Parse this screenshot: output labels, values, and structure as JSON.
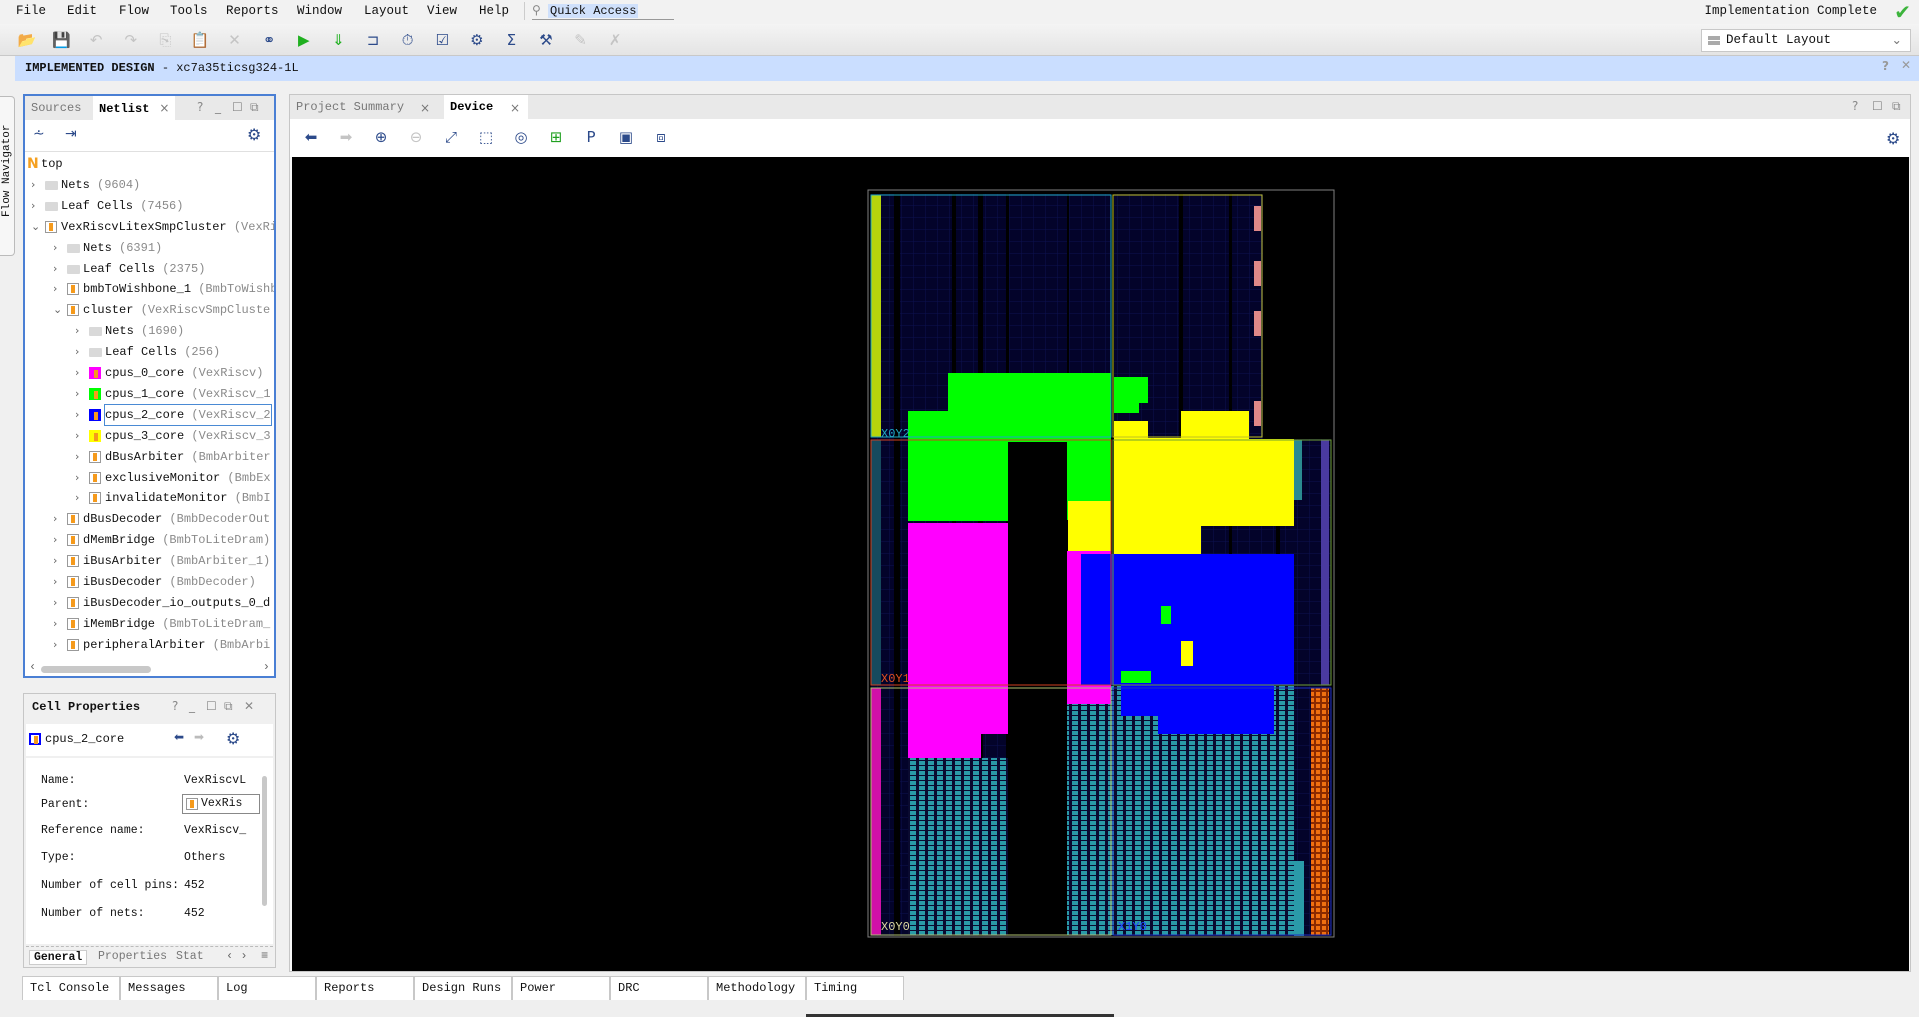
{
  "menu": [
    "File",
    "Edit",
    "Flow",
    "Tools",
    "Reports",
    "Window",
    "Layout",
    "View",
    "Help"
  ],
  "menu_mnemonic_index": [
    0,
    0,
    1,
    0,
    4,
    0,
    0,
    0,
    0
  ],
  "quick_access": "Quick Access",
  "toolbar_icons": [
    "open-project",
    "save",
    "undo",
    "redo",
    "copy",
    "paste",
    "delete",
    "find",
    "run",
    "program-bitstream",
    "report-timing",
    "timer",
    "checklist",
    "settings",
    "sum",
    "implement-settings",
    "edit-disabled",
    "cancel-disabled"
  ],
  "status": {
    "text": "Implementation Complete",
    "icon": "check-icon",
    "color": "#3cb43c"
  },
  "layout_select": {
    "value": "Default Layout"
  },
  "banner": {
    "title": "IMPLEMENTED DESIGN",
    "device": "- xc7a35ticsg324-1L"
  },
  "flow_navigator": "Flow Navigator",
  "netlist_panel": {
    "tabs": [
      {
        "label": "Sources",
        "active": false
      },
      {
        "label": "Netlist",
        "active": true
      }
    ],
    "close": "×",
    "tree": [
      {
        "level": 0,
        "type": "root",
        "name": "top",
        "detail": ""
      },
      {
        "level": 1,
        "type": "folder",
        "name": "Nets",
        "detail": "(9604)",
        "expanded": false
      },
      {
        "level": 1,
        "type": "folder",
        "name": "Leaf Cells",
        "detail": "(7456)",
        "expanded": false
      },
      {
        "level": 1,
        "type": "cell",
        "name": "VexRiscvLitexSmpCluster",
        "detail": "(VexRi",
        "expanded": true
      },
      {
        "level": 2,
        "type": "folder",
        "name": "Nets",
        "detail": "(6391)",
        "expanded": false
      },
      {
        "level": 2,
        "type": "folder",
        "name": "Leaf Cells",
        "detail": "(2375)",
        "expanded": false
      },
      {
        "level": 2,
        "type": "cell",
        "name": "bmbToWishbone_1",
        "detail": "(BmbToWishb",
        "expanded": false
      },
      {
        "level": 2,
        "type": "cell",
        "name": "cluster",
        "detail": "(VexRiscvSmpCluste",
        "expanded": true
      },
      {
        "level": 3,
        "type": "folder",
        "name": "Nets",
        "detail": "(1690)",
        "expanded": false
      },
      {
        "level": 3,
        "type": "folder",
        "name": "Leaf Cells",
        "detail": "(256)",
        "expanded": false
      },
      {
        "level": 3,
        "type": "cell",
        "name": "cpus_0_core",
        "detail": "(VexRiscv)",
        "expanded": false,
        "color": "#ff00ff"
      },
      {
        "level": 3,
        "type": "cell",
        "name": "cpus_1_core",
        "detail": "(VexRiscv_1",
        "expanded": false,
        "color": "#00ff00"
      },
      {
        "level": 3,
        "type": "cell",
        "name": "cpus_2_core",
        "detail": "(VexRiscv_2",
        "expanded": false,
        "color": "#0000ff",
        "selected": true
      },
      {
        "level": 3,
        "type": "cell",
        "name": "cpus_3_core",
        "detail": "(VexRiscv_3",
        "expanded": false,
        "color": "#ffff00"
      },
      {
        "level": 3,
        "type": "cell",
        "name": "dBusArbiter",
        "detail": "(BmbArbiter",
        "expanded": false
      },
      {
        "level": 3,
        "type": "cell",
        "name": "exclusiveMonitor",
        "detail": "(BmbEx",
        "expanded": false
      },
      {
        "level": 3,
        "type": "cell",
        "name": "invalidateMonitor",
        "detail": "(BmbI",
        "expanded": false
      },
      {
        "level": 2,
        "type": "cell",
        "name": "dBusDecoder",
        "detail": "(BmbDecoderOut",
        "expanded": false
      },
      {
        "level": 2,
        "type": "cell",
        "name": "dMemBridge",
        "detail": "(BmbToLiteDram)",
        "expanded": false
      },
      {
        "level": 2,
        "type": "cell",
        "name": "iBusArbiter",
        "detail": "(BmbArbiter_1)",
        "expanded": false
      },
      {
        "level": 2,
        "type": "cell",
        "name": "iBusDecoder",
        "detail": "(BmbDecoder)",
        "expanded": false
      },
      {
        "level": 2,
        "type": "cell",
        "name": "iBusDecoder_io_outputs_0_d",
        "detail": "",
        "expanded": false
      },
      {
        "level": 2,
        "type": "cell",
        "name": "iMemBridge",
        "detail": "(BmbToLiteDram_",
        "expanded": false
      },
      {
        "level": 2,
        "type": "cell",
        "name": "peripheralArbiter",
        "detail": "(BmbArbi",
        "expanded": false
      }
    ]
  },
  "cell_properties": {
    "title": "Cell Properties",
    "cell": "cpus_2_core",
    "rows": [
      {
        "label": "Name:",
        "value": "VexRiscvL"
      },
      {
        "label": "Parent:",
        "value": "VexRis"
      },
      {
        "label": "Reference name:",
        "value": "VexRiscv_"
      },
      {
        "label": "Type:",
        "value": "Others"
      },
      {
        "label": "Number of cell pins:",
        "value": "452"
      },
      {
        "label": "Number of nets:",
        "value": "452"
      }
    ],
    "tabs": [
      "General",
      "Properties",
      "Stat"
    ]
  },
  "device_panel": {
    "tabs": [
      {
        "label": "Project Summary",
        "active": false
      },
      {
        "label": "Device",
        "active": true
      }
    ],
    "toolbar_icons": [
      "back",
      "forward",
      "zoom-in",
      "zoom-out",
      "fit",
      "zoom-selection",
      "auto-fit",
      "route",
      "add-pblock",
      "draw-pblock",
      "fit-selection"
    ],
    "clock_regions": [
      "X0Y2",
      "X0Y1",
      "X0Y0",
      "X1Y0"
    ]
  },
  "bottom_tabs": [
    "Tcl Console",
    "Messages",
    "Log",
    "Reports",
    "Design Runs",
    "Power",
    "DRC",
    "Methodology",
    "Timing"
  ],
  "colors": {
    "cpu0": "#ff00ff",
    "cpu1": "#00ff00",
    "cpu2": "#0000ff",
    "cpu3": "#ffff00",
    "cells": "#2a9aa8",
    "banner": "#cadeff",
    "accent": "#4a7fd4"
  }
}
